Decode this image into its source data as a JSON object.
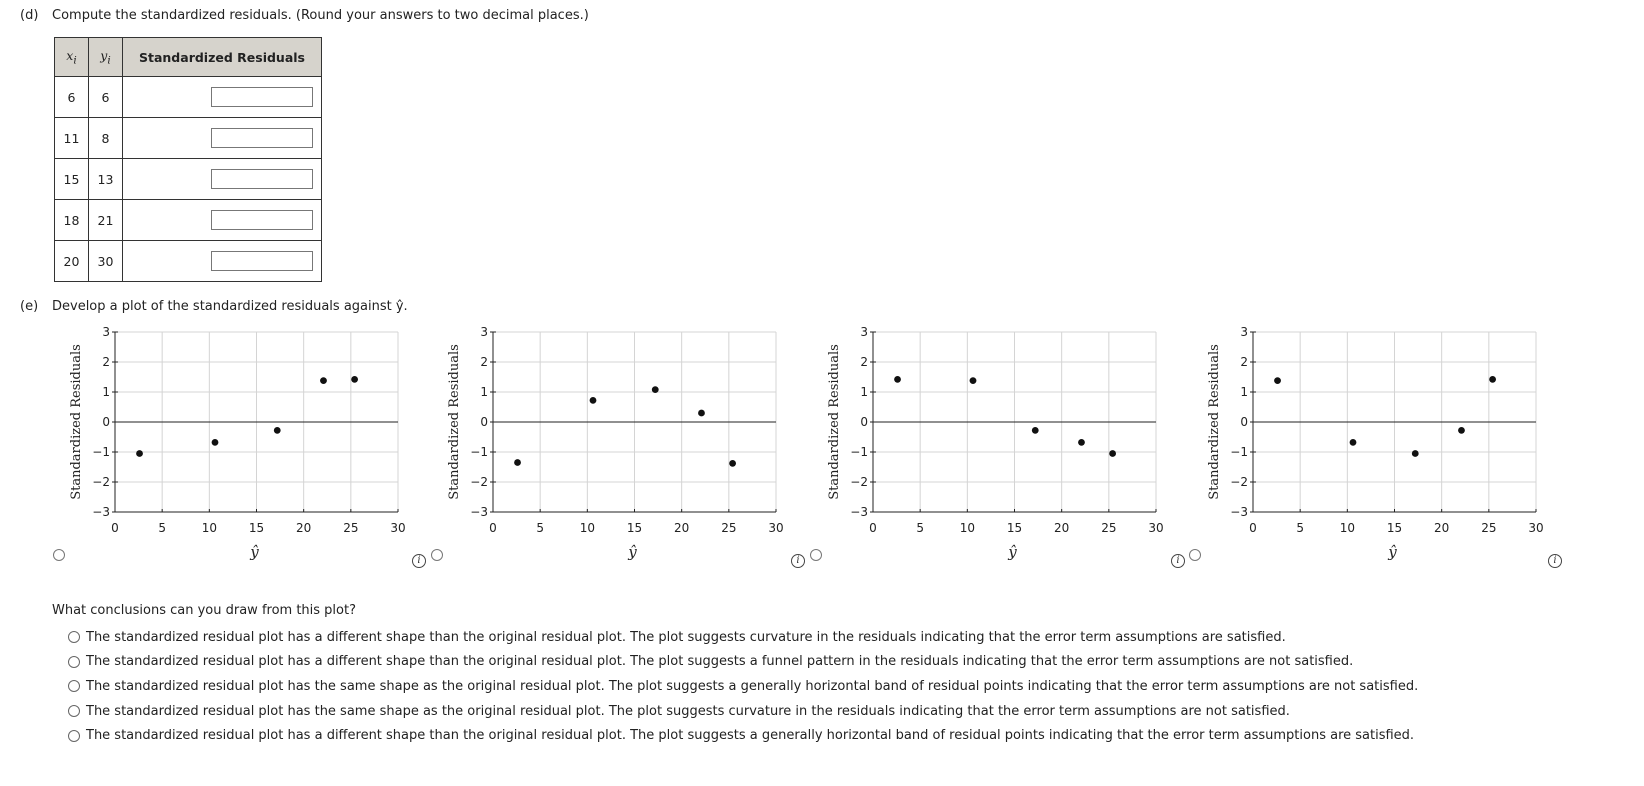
{
  "part_d": {
    "label": "(d)",
    "prompt": "Compute the standardized residuals. (Round your answers to two decimal places.)",
    "table": {
      "headers": {
        "x": "x",
        "x_sub": "i",
        "y": "y",
        "y_sub": "i",
        "res": "Standardized Residuals"
      },
      "rows": [
        {
          "x": "6",
          "y": "6",
          "value": ""
        },
        {
          "x": "11",
          "y": "8",
          "value": ""
        },
        {
          "x": "15",
          "y": "13",
          "value": ""
        },
        {
          "x": "18",
          "y": "21",
          "value": ""
        },
        {
          "x": "20",
          "y": "30",
          "value": ""
        }
      ]
    }
  },
  "part_e": {
    "label": "(e)",
    "prompt": "Develop a plot of the standardized residuals against ŷ.",
    "info_glyph": "i",
    "question": "What conclusions can you draw from this plot?",
    "choices": [
      "The standardized residual plot has a different shape than the original residual plot. The plot suggests curvature in the residuals indicating that the error term assumptions are satisfied.",
      "The standardized residual plot has a different shape than the original residual plot. The plot suggests a funnel pattern in the residuals indicating that the error term assumptions are not satisfied.",
      "The standardized residual plot has the same shape as the original residual plot. The plot suggests a generally horizontal band of residual points indicating that the error term assumptions are not satisfied.",
      "The standardized residual plot has the same shape as the original residual plot. The plot suggests curvature in the residuals indicating that the error term assumptions are not satisfied.",
      "The standardized residual plot has a different shape than the original residual plot. The plot suggests a generally horizontal band of residual points indicating that the error term assumptions are satisfied."
    ]
  },
  "chart_data": [
    {
      "type": "scatter",
      "xlabel": "ŷ",
      "ylabel": "Standardized Residuals",
      "xlim": [
        0,
        30
      ],
      "ylim": [
        -3,
        3
      ],
      "xticks": [
        "0",
        "5",
        "10",
        "15",
        "20",
        "25",
        "30"
      ],
      "yticks": [
        "3",
        "2",
        "1",
        "0",
        "−1",
        "−2",
        "−3"
      ],
      "grid": true,
      "points": [
        [
          2.6,
          -1.05
        ],
        [
          10.6,
          -0.68
        ],
        [
          17.2,
          -0.28
        ],
        [
          22.1,
          1.38
        ],
        [
          25.4,
          1.42
        ]
      ]
    },
    {
      "type": "scatter",
      "xlabel": "ŷ",
      "ylabel": "Standardized Residuals",
      "xlim": [
        0,
        30
      ],
      "ylim": [
        -3,
        3
      ],
      "xticks": [
        "0",
        "5",
        "10",
        "15",
        "20",
        "25",
        "30"
      ],
      "yticks": [
        "3",
        "2",
        "1",
        "0",
        "−1",
        "−2",
        "−3"
      ],
      "grid": true,
      "points": [
        [
          2.6,
          -1.35
        ],
        [
          10.6,
          0.72
        ],
        [
          17.2,
          1.08
        ],
        [
          22.1,
          0.3
        ],
        [
          25.4,
          -1.38
        ]
      ]
    },
    {
      "type": "scatter",
      "xlabel": "ŷ",
      "ylabel": "Standardized Residuals",
      "xlim": [
        0,
        30
      ],
      "ylim": [
        -3,
        3
      ],
      "xticks": [
        "0",
        "5",
        "10",
        "15",
        "20",
        "25",
        "30"
      ],
      "yticks": [
        "3",
        "2",
        "1",
        "0",
        "−1",
        "−2",
        "−3"
      ],
      "grid": true,
      "points": [
        [
          2.6,
          1.42
        ],
        [
          10.6,
          1.38
        ],
        [
          17.2,
          -0.28
        ],
        [
          22.1,
          -0.68
        ],
        [
          25.4,
          -1.05
        ]
      ]
    },
    {
      "type": "scatter",
      "xlabel": "ŷ",
      "ylabel": "Standardized Residuals",
      "xlim": [
        0,
        30
      ],
      "ylim": [
        -3,
        3
      ],
      "xticks": [
        "0",
        "5",
        "10",
        "15",
        "20",
        "25",
        "30"
      ],
      "yticks": [
        "3",
        "2",
        "1",
        "0",
        "−1",
        "−2",
        "−3"
      ],
      "grid": true,
      "points": [
        [
          2.6,
          1.38
        ],
        [
          10.6,
          -0.68
        ],
        [
          17.2,
          -1.05
        ],
        [
          22.1,
          -0.28
        ],
        [
          25.4,
          1.42
        ]
      ]
    }
  ]
}
